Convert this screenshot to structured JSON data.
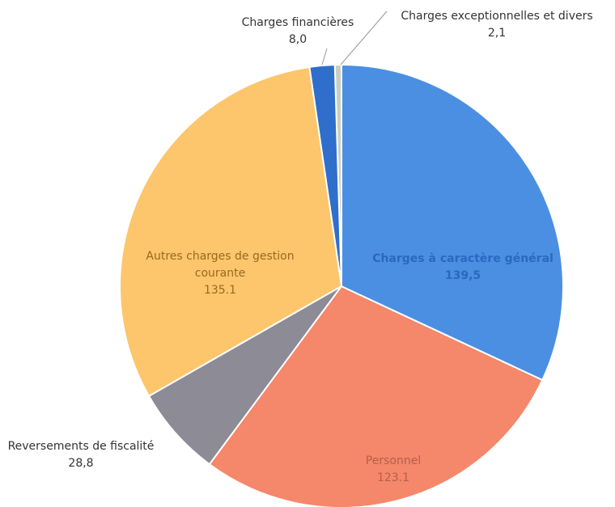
{
  "chart_data": {
    "type": "pie",
    "categories": [
      "Charges à caractère général",
      "Personnel",
      "Reversements de fiscalité",
      "Autres charges de gestion courante",
      "Charges financières",
      "Charges exceptionnelles et divers"
    ],
    "values": [
      139.5,
      123.1,
      28.8,
      135.1,
      8.0,
      2.1
    ],
    "value_labels": [
      "139,5",
      "123.1",
      "28,8",
      "135.1",
      "8,0",
      "2,1"
    ],
    "colors": [
      "#4b8fe2",
      "#f5876a",
      "#8c8b96",
      "#fdc56c",
      "#2f6ecb",
      "#c9cfc2"
    ]
  }
}
